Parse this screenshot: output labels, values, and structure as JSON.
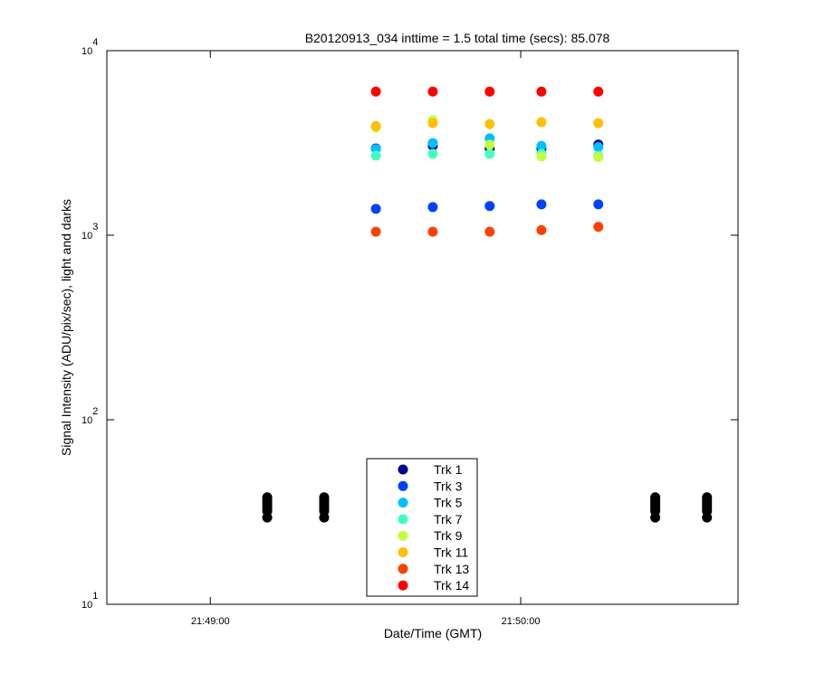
{
  "chart_data": {
    "type": "scatter",
    "title": "B20120913_034 inttime = 1.5 total time (secs): 85.078",
    "x_label": "Date/Time (GMT)",
    "y_label": "Signal Intensity (ADU/pix/sec), light and darks",
    "log_y": true,
    "xlim": [
      "21:48:40",
      "21:50:42"
    ],
    "xticks": [
      "21:49:00",
      "21:50:00"
    ],
    "ylim": [
      10,
      10000
    ],
    "yticks": [
      {
        "value": 10,
        "label": "10",
        "exponent": "1"
      },
      {
        "value": 100,
        "label": "10",
        "exponent": "2"
      },
      {
        "value": 1000,
        "label": "10",
        "exponent": "3"
      },
      {
        "value": 10000,
        "label": "10",
        "exponent": "4"
      }
    ],
    "x": [
      "21:49:32",
      "21:49:43",
      "21:49:54",
      "21:50:04",
      "21:50:15"
    ],
    "series": [
      {
        "name": "Trk 1",
        "color": "#00008f",
        "values": [
          2950,
          3050,
          2950,
          2950,
          3100
        ]
      },
      {
        "name": "Trk 3",
        "color": "#0040ff",
        "values": [
          1390,
          1420,
          1440,
          1470,
          1470
        ]
      },
      {
        "name": "Trk 5",
        "color": "#00bfff",
        "values": [
          2930,
          3160,
          3350,
          3050,
          3000
        ]
      },
      {
        "name": "Trk 7",
        "color": "#40ffbf",
        "values": [
          2700,
          2760,
          2760,
          2760,
          2700
        ]
      },
      {
        "name": "Trk 9",
        "color": "#bfff40",
        "values": [
          3830,
          4200,
          3090,
          2670,
          2650
        ]
      },
      {
        "name": "Trk 11",
        "color": "#ffbf00",
        "values": [
          3900,
          4050,
          4000,
          4100,
          4050
        ]
      },
      {
        "name": "Trk 13",
        "color": "#ff4000",
        "values": [
          1045,
          1045,
          1045,
          1065,
          1110
        ]
      },
      {
        "name": "Trk 14",
        "color": "#ff0000",
        "values": [
          6000,
          6000,
          6000,
          6000,
          6000
        ]
      }
    ],
    "darks": {
      "color": "#000000",
      "x": [
        "21:49:11",
        "21:49:22",
        "21:50:26",
        "21:50:36"
      ],
      "values": [
        [
          38,
          37,
          36,
          35,
          34,
          33,
          32,
          29.5
        ],
        [
          38,
          37,
          36,
          35,
          34,
          33,
          32,
          29.5
        ],
        [
          38,
          37,
          36,
          35,
          34,
          33,
          32,
          29.5
        ],
        [
          38,
          37,
          36,
          35,
          34,
          33,
          32,
          29.5
        ]
      ]
    }
  }
}
